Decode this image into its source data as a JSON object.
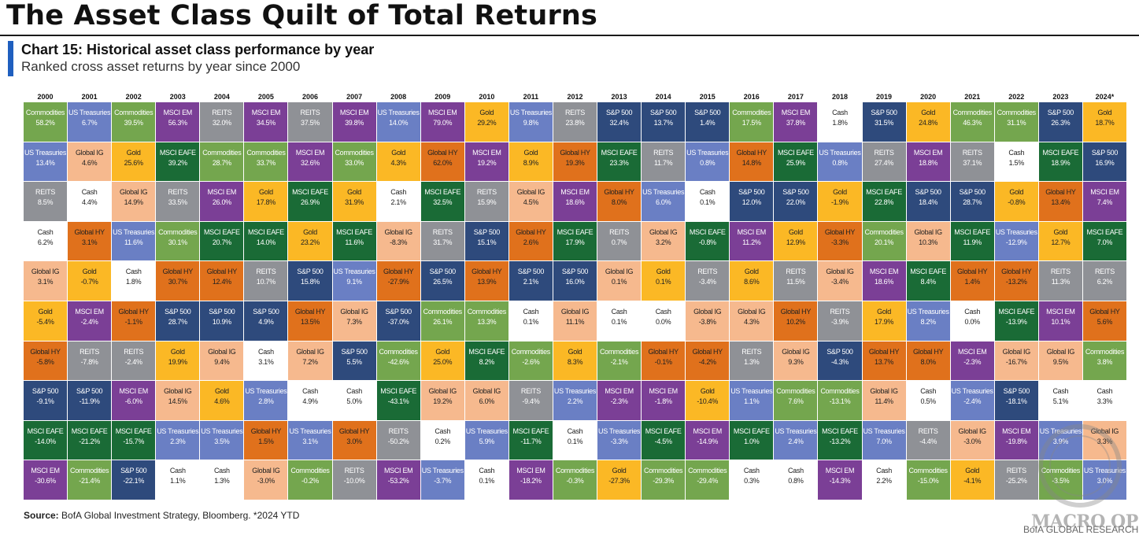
{
  "title": "The Asset Class Quilt of Total Returns",
  "chart_label": "Chart 15: Historical asset class performance by year",
  "chart_sublabel": "Ranked cross asset returns by year since 2000",
  "source_label": "Source:",
  "source_text": "BofA Global Investment Strategy, Bloomberg. *2024 YTD",
  "credit": "BofA GLOBAL RESEARCH",
  "watermark": "MACRO OPS",
  "colors": {
    "Commodities": {
      "bg": "#74a64e",
      "fg": "#ffffff"
    },
    "US Treasuries": {
      "bg": "#6a7fc4",
      "fg": "#ffffff"
    },
    "REITS": {
      "bg": "#8f9196",
      "fg": "#ffffff"
    },
    "Cash": {
      "bg": "#ffffff",
      "fg": "#222222"
    },
    "Global IG": {
      "bg": "#f6b98e",
      "fg": "#222222"
    },
    "Gold": {
      "bg": "#fbb825",
      "fg": "#222222"
    },
    "MSCI EM": {
      "bg": "#7b3f96",
      "fg": "#ffffff"
    },
    "Global HY": {
      "bg": "#e0711c",
      "fg": "#222222"
    },
    "S&P 500": {
      "bg": "#2e4a7c",
      "fg": "#ffffff"
    },
    "MSCI EAFE": {
      "bg": "#1a6b36",
      "fg": "#ffffff"
    }
  },
  "chart_data": {
    "type": "table",
    "title": "Chart 15: Historical asset class performance by year",
    "subtitle": "Ranked cross asset returns by year since 2000",
    "years": [
      "2000",
      "2001",
      "2002",
      "2003",
      "2004",
      "2005",
      "2006",
      "2007",
      "2008",
      "2009",
      "2010",
      "2011",
      "2012",
      "2013",
      "2014",
      "2015",
      "2016",
      "2017",
      "2018",
      "2019",
      "2020",
      "2021",
      "2022",
      "2023",
      "2024*"
    ],
    "columns": [
      [
        [
          "Commodities",
          "58.2%"
        ],
        [
          "US Treasuries",
          "13.4%"
        ],
        [
          "REITS",
          "8.5%"
        ],
        [
          "Cash",
          "6.2%"
        ],
        [
          "Global IG",
          "3.1%"
        ],
        [
          "Gold",
          "-5.4%"
        ],
        [
          "Global HY",
          "-5.8%"
        ],
        [
          "S&P 500",
          "-9.1%"
        ],
        [
          "MSCI EAFE",
          "-14.0%"
        ],
        [
          "MSCI EM",
          "-30.6%"
        ]
      ],
      [
        [
          "US Treasuries",
          "6.7%"
        ],
        [
          "Global IG",
          "4.6%"
        ],
        [
          "Cash",
          "4.4%"
        ],
        [
          "Global HY",
          "3.1%"
        ],
        [
          "Gold",
          "-0.7%"
        ],
        [
          "MSCI EM",
          "-2.4%"
        ],
        [
          "REITS",
          "-7.8%"
        ],
        [
          "S&P 500",
          "-11.9%"
        ],
        [
          "MSCI EAFE",
          "-21.2%"
        ],
        [
          "Commodities",
          "-21.4%"
        ]
      ],
      [
        [
          "Commodities",
          "39.5%"
        ],
        [
          "Gold",
          "25.6%"
        ],
        [
          "Global IG",
          "14.9%"
        ],
        [
          "US Treasuries",
          "11.6%"
        ],
        [
          "Cash",
          "1.8%"
        ],
        [
          "Global HY",
          "-1.1%"
        ],
        [
          "REITS",
          "-2.4%"
        ],
        [
          "MSCI EM",
          "-6.0%"
        ],
        [
          "MSCI EAFE",
          "-15.7%"
        ],
        [
          "S&P 500",
          "-22.1%"
        ]
      ],
      [
        [
          "MSCI EM",
          "56.3%"
        ],
        [
          "MSCI EAFE",
          "39.2%"
        ],
        [
          "REITS",
          "33.5%"
        ],
        [
          "Commodities",
          "30.1%"
        ],
        [
          "Global HY",
          "30.7%"
        ],
        [
          "S&P 500",
          "28.7%"
        ],
        [
          "Gold",
          "19.9%"
        ],
        [
          "Global IG",
          "14.5%"
        ],
        [
          "US Treasuries",
          "2.3%"
        ],
        [
          "Cash",
          "1.1%"
        ]
      ],
      [
        [
          "REITS",
          "32.0%"
        ],
        [
          "Commodities",
          "28.7%"
        ],
        [
          "MSCI EM",
          "26.0%"
        ],
        [
          "MSCI EAFE",
          "20.7%"
        ],
        [
          "Global HY",
          "12.4%"
        ],
        [
          "S&P 500",
          "10.9%"
        ],
        [
          "Global IG",
          "9.4%"
        ],
        [
          "Gold",
          "4.6%"
        ],
        [
          "US Treasuries",
          "3.5%"
        ],
        [
          "Cash",
          "1.3%"
        ]
      ],
      [
        [
          "MSCI EM",
          "34.5%"
        ],
        [
          "Commodities",
          "33.7%"
        ],
        [
          "Gold",
          "17.8%"
        ],
        [
          "MSCI EAFE",
          "14.0%"
        ],
        [
          "REITS",
          "10.7%"
        ],
        [
          "S&P 500",
          "4.9%"
        ],
        [
          "Cash",
          "3.1%"
        ],
        [
          "US Treasuries",
          "2.8%"
        ],
        [
          "Global HY",
          "1.5%"
        ],
        [
          "Global IG",
          "-3.0%"
        ]
      ],
      [
        [
          "REITS",
          "37.5%"
        ],
        [
          "MSCI EM",
          "32.6%"
        ],
        [
          "MSCI EAFE",
          "26.9%"
        ],
        [
          "Gold",
          "23.2%"
        ],
        [
          "S&P 500",
          "15.8%"
        ],
        [
          "Global HY",
          "13.5%"
        ],
        [
          "Global IG",
          "7.2%"
        ],
        [
          "Cash",
          "4.9%"
        ],
        [
          "US Treasuries",
          "3.1%"
        ],
        [
          "Commodities",
          "-0.2%"
        ]
      ],
      [
        [
          "MSCI EM",
          "39.8%"
        ],
        [
          "Commodities",
          "33.0%"
        ],
        [
          "Gold",
          "31.9%"
        ],
        [
          "MSCI EAFE",
          "11.6%"
        ],
        [
          "US Treasuries",
          "9.1%"
        ],
        [
          "Global IG",
          "7.3%"
        ],
        [
          "S&P 500",
          "5.5%"
        ],
        [
          "Cash",
          "5.0%"
        ],
        [
          "Global HY",
          "3.0%"
        ],
        [
          "REITS",
          "-10.0%"
        ]
      ],
      [
        [
          "US Treasuries",
          "14.0%"
        ],
        [
          "Gold",
          "4.3%"
        ],
        [
          "Cash",
          "2.1%"
        ],
        [
          "Global IG",
          "-8.3%"
        ],
        [
          "Global HY",
          "-27.9%"
        ],
        [
          "S&P 500",
          "-37.0%"
        ],
        [
          "Commodities",
          "-42.6%"
        ],
        [
          "MSCI EAFE",
          "-43.1%"
        ],
        [
          "REITS",
          "-50.2%"
        ],
        [
          "MSCI EM",
          "-53.2%"
        ]
      ],
      [
        [
          "MSCI EM",
          "79.0%"
        ],
        [
          "Global HY",
          "62.0%"
        ],
        [
          "MSCI EAFE",
          "32.5%"
        ],
        [
          "REITS",
          "31.7%"
        ],
        [
          "S&P 500",
          "26.5%"
        ],
        [
          "Commodities",
          "26.1%"
        ],
        [
          "Gold",
          "25.0%"
        ],
        [
          "Global IG",
          "19.2%"
        ],
        [
          "Cash",
          "0.2%"
        ],
        [
          "US Treasuries",
          "-3.7%"
        ]
      ],
      [
        [
          "Gold",
          "29.2%"
        ],
        [
          "MSCI EM",
          "19.2%"
        ],
        [
          "REITS",
          "15.9%"
        ],
        [
          "S&P 500",
          "15.1%"
        ],
        [
          "Global HY",
          "13.9%"
        ],
        [
          "Commodities",
          "13.3%"
        ],
        [
          "MSCI EAFE",
          "8.2%"
        ],
        [
          "Global IG",
          "6.0%"
        ],
        [
          "US Treasuries",
          "5.9%"
        ],
        [
          "Cash",
          "0.1%"
        ]
      ],
      [
        [
          "US Treasuries",
          "9.8%"
        ],
        [
          "Gold",
          "8.9%"
        ],
        [
          "Global IG",
          "4.5%"
        ],
        [
          "Global HY",
          "2.6%"
        ],
        [
          "S&P 500",
          "2.1%"
        ],
        [
          "Cash",
          "0.1%"
        ],
        [
          "Commodities",
          "-2.6%"
        ],
        [
          "REITS",
          "-9.4%"
        ],
        [
          "MSCI EAFE",
          "-11.7%"
        ],
        [
          "MSCI EM",
          "-18.2%"
        ]
      ],
      [
        [
          "REITS",
          "23.8%"
        ],
        [
          "Global HY",
          "19.3%"
        ],
        [
          "MSCI EM",
          "18.6%"
        ],
        [
          "MSCI EAFE",
          "17.9%"
        ],
        [
          "S&P 500",
          "16.0%"
        ],
        [
          "Global IG",
          "11.1%"
        ],
        [
          "Gold",
          "8.3%"
        ],
        [
          "US Treasuries",
          "2.2%"
        ],
        [
          "Cash",
          "0.1%"
        ],
        [
          "Commodities",
          "-0.3%"
        ]
      ],
      [
        [
          "S&P 500",
          "32.4%"
        ],
        [
          "MSCI EAFE",
          "23.3%"
        ],
        [
          "Global HY",
          "8.0%"
        ],
        [
          "REITS",
          "0.7%"
        ],
        [
          "Global IG",
          "0.1%"
        ],
        [
          "Cash",
          "0.1%"
        ],
        [
          "Commodities",
          "-2.1%"
        ],
        [
          "MSCI EM",
          "-2.3%"
        ],
        [
          "US Treasuries",
          "-3.3%"
        ],
        [
          "Gold",
          "-27.3%"
        ]
      ],
      [
        [
          "S&P 500",
          "13.7%"
        ],
        [
          "REITS",
          "11.7%"
        ],
        [
          "US Treasuries",
          "6.0%"
        ],
        [
          "Global IG",
          "3.2%"
        ],
        [
          "Gold",
          "0.1%"
        ],
        [
          "Cash",
          "0.0%"
        ],
        [
          "Global HY",
          "-0.1%"
        ],
        [
          "MSCI EM",
          "-1.8%"
        ],
        [
          "MSCI EAFE",
          "-4.5%"
        ],
        [
          "Commodities",
          "-29.3%"
        ]
      ],
      [
        [
          "S&P 500",
          "1.4%"
        ],
        [
          "US Treasuries",
          "0.8%"
        ],
        [
          "Cash",
          "0.1%"
        ],
        [
          "MSCI EAFE",
          "-0.8%"
        ],
        [
          "REITS",
          "-3.4%"
        ],
        [
          "Global IG",
          "-3.8%"
        ],
        [
          "Global HY",
          "-4.2%"
        ],
        [
          "Gold",
          "-10.4%"
        ],
        [
          "MSCI EM",
          "-14.9%"
        ],
        [
          "Commodities",
          "-29.4%"
        ]
      ],
      [
        [
          "Commodities",
          "17.5%"
        ],
        [
          "Global HY",
          "14.8%"
        ],
        [
          "S&P 500",
          "12.0%"
        ],
        [
          "MSCI EM",
          "11.2%"
        ],
        [
          "Gold",
          "8.6%"
        ],
        [
          "Global IG",
          "4.3%"
        ],
        [
          "REITS",
          "1.3%"
        ],
        [
          "US Treasuries",
          "1.1%"
        ],
        [
          "MSCI EAFE",
          "1.0%"
        ],
        [
          "Cash",
          "0.3%"
        ]
      ],
      [
        [
          "MSCI EM",
          "37.8%"
        ],
        [
          "MSCI EAFE",
          "25.9%"
        ],
        [
          "S&P 500",
          "22.0%"
        ],
        [
          "Gold",
          "12.9%"
        ],
        [
          "REITS",
          "11.5%"
        ],
        [
          "Global HY",
          "10.2%"
        ],
        [
          "Global IG",
          "9.3%"
        ],
        [
          "Commodities",
          "7.6%"
        ],
        [
          "US Treasuries",
          "2.4%"
        ],
        [
          "Cash",
          "0.8%"
        ]
      ],
      [
        [
          "Cash",
          "1.8%"
        ],
        [
          "US Treasuries",
          "0.8%"
        ],
        [
          "Gold",
          "-1.9%"
        ],
        [
          "Global HY",
          "-3.3%"
        ],
        [
          "Global IG",
          "-3.4%"
        ],
        [
          "REITS",
          "-3.9%"
        ],
        [
          "S&P 500",
          "-4.3%"
        ],
        [
          "Commodities",
          "-13.1%"
        ],
        [
          "MSCI EAFE",
          "-13.2%"
        ],
        [
          "MSCI EM",
          "-14.3%"
        ]
      ],
      [
        [
          "S&P 500",
          "31.5%"
        ],
        [
          "REITS",
          "27.4%"
        ],
        [
          "MSCI EAFE",
          "22.8%"
        ],
        [
          "Commodities",
          "20.1%"
        ],
        [
          "MSCI EM",
          "18.6%"
        ],
        [
          "Gold",
          "17.9%"
        ],
        [
          "Global HY",
          "13.7%"
        ],
        [
          "Global IG",
          "11.4%"
        ],
        [
          "US Treasuries",
          "7.0%"
        ],
        [
          "Cash",
          "2.2%"
        ]
      ],
      [
        [
          "Gold",
          "24.8%"
        ],
        [
          "MSCI EM",
          "18.8%"
        ],
        [
          "S&P 500",
          "18.4%"
        ],
        [
          "Global IG",
          "10.3%"
        ],
        [
          "MSCI EAFE",
          "8.4%"
        ],
        [
          "US Treasuries",
          "8.2%"
        ],
        [
          "Global HY",
          "8.0%"
        ],
        [
          "Cash",
          "0.5%"
        ],
        [
          "REITS",
          "-4.4%"
        ],
        [
          "Commodities",
          "-15.0%"
        ]
      ],
      [
        [
          "Commodities",
          "46.3%"
        ],
        [
          "REITS",
          "37.1%"
        ],
        [
          "S&P 500",
          "28.7%"
        ],
        [
          "MSCI EAFE",
          "11.9%"
        ],
        [
          "Global HY",
          "1.4%"
        ],
        [
          "Cash",
          "0.0%"
        ],
        [
          "MSCI EM",
          "-2.3%"
        ],
        [
          "US Treasuries",
          "-2.4%"
        ],
        [
          "Global IG",
          "-3.0%"
        ],
        [
          "Gold",
          "-4.1%"
        ]
      ],
      [
        [
          "Commodities",
          "31.1%"
        ],
        [
          "Cash",
          "1.5%"
        ],
        [
          "Gold",
          "-0.8%"
        ],
        [
          "US Treasuries",
          "-12.9%"
        ],
        [
          "Global HY",
          "-13.2%"
        ],
        [
          "MSCI EAFE",
          "-13.9%"
        ],
        [
          "Global IG",
          "-16.7%"
        ],
        [
          "S&P 500",
          "-18.1%"
        ],
        [
          "MSCI EM",
          "-19.8%"
        ],
        [
          "REITS",
          "-25.2%"
        ]
      ],
      [
        [
          "S&P 500",
          "26.3%"
        ],
        [
          "MSCI EAFE",
          "18.9%"
        ],
        [
          "Global HY",
          "13.4%"
        ],
        [
          "Gold",
          "12.7%"
        ],
        [
          "REITS",
          "11.3%"
        ],
        [
          "MSCI EM",
          "10.1%"
        ],
        [
          "Global IG",
          "9.5%"
        ],
        [
          "Cash",
          "5.1%"
        ],
        [
          "US Treasuries",
          "3.9%"
        ],
        [
          "Commodities",
          "-3.5%"
        ]
      ],
      [
        [
          "Gold",
          "18.7%"
        ],
        [
          "S&P 500",
          "16.9%"
        ],
        [
          "MSCI EM",
          "7.4%"
        ],
        [
          "MSCI EAFE",
          "7.0%"
        ],
        [
          "REITS",
          "6.2%"
        ],
        [
          "Global HY",
          "5.6%"
        ],
        [
          "Commodities",
          "3.8%"
        ],
        [
          "Cash",
          "3.3%"
        ],
        [
          "Global IG",
          "3.3%"
        ],
        [
          "US Treasuries",
          "3.0%"
        ]
      ]
    ]
  }
}
